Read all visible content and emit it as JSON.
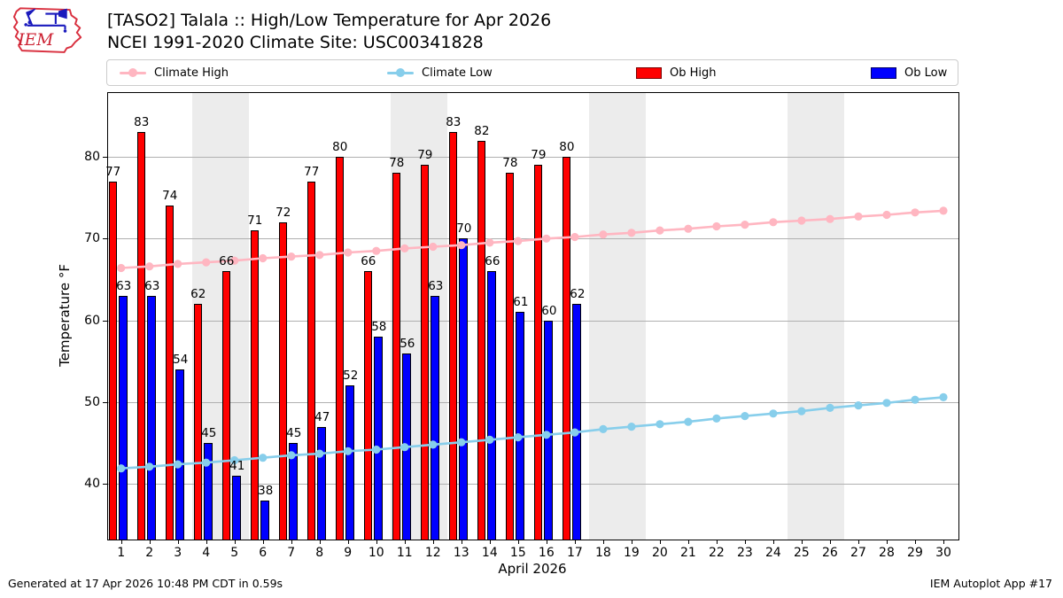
{
  "header": {
    "title_line1": "[TASO2] Talala :: High/Low Temperature for Apr 2026",
    "title_line2": "NCEI 1991-2020 Climate Site: USC00341828",
    "logo_text": "IEM"
  },
  "legend": [
    {
      "label": "Climate High",
      "type": "line",
      "color": "#ffb6c1"
    },
    {
      "label": "Climate Low",
      "type": "line",
      "color": "#87ceeb"
    },
    {
      "label": "Ob High",
      "type": "patch",
      "color": "#ff0000"
    },
    {
      "label": "Ob Low",
      "type": "patch",
      "color": "#0000ff"
    }
  ],
  "chart_data": {
    "type": "bar",
    "title": "[TASO2] Talala :: High/Low Temperature for Apr 2026",
    "subtitle": "NCEI 1991-2020 Climate Site: USC00341828",
    "x": [
      1,
      2,
      3,
      4,
      5,
      6,
      7,
      8,
      9,
      10,
      11,
      12,
      13,
      14,
      15,
      16,
      17,
      18,
      19,
      20,
      21,
      22,
      23,
      24,
      25,
      26,
      27,
      28,
      29,
      30
    ],
    "series": [
      {
        "name": "Ob High",
        "type": "bar",
        "color": "#ff0000",
        "values": [
          77,
          83,
          74,
          62,
          66,
          71,
          72,
          77,
          80,
          66,
          78,
          79,
          83,
          82,
          78,
          79,
          80,
          null,
          null,
          null,
          null,
          null,
          null,
          null,
          null,
          null,
          null,
          null,
          null,
          null
        ]
      },
      {
        "name": "Ob Low",
        "type": "bar",
        "color": "#0000ff",
        "values": [
          63,
          63,
          54,
          45,
          41,
          38,
          45,
          47,
          52,
          58,
          56,
          63,
          70,
          66,
          61,
          60,
          62,
          null,
          null,
          null,
          null,
          null,
          null,
          null,
          null,
          null,
          null,
          null,
          null,
          null
        ]
      },
      {
        "name": "Climate High",
        "type": "line",
        "color": "#ffb6c1",
        "values": [
          66.4,
          66.6,
          66.9,
          67.1,
          67.3,
          67.6,
          67.8,
          68.0,
          68.3,
          68.5,
          68.8,
          69.0,
          69.2,
          69.5,
          69.7,
          70.0,
          70.2,
          70.5,
          70.7,
          71.0,
          71.2,
          71.5,
          71.7,
          72.0,
          72.2,
          72.4,
          72.7,
          72.9,
          73.2,
          73.4
        ]
      },
      {
        "name": "Climate Low",
        "type": "line",
        "color": "#87ceeb",
        "values": [
          41.9,
          42.1,
          42.4,
          42.6,
          42.9,
          43.2,
          43.5,
          43.7,
          44.0,
          44.2,
          44.5,
          44.8,
          45.1,
          45.4,
          45.7,
          46.0,
          46.3,
          46.7,
          47.0,
          47.3,
          47.6,
          48.0,
          48.3,
          48.6,
          48.9,
          49.3,
          49.6,
          49.9,
          50.3,
          50.6
        ]
      }
    ],
    "weekend_bands": [
      [
        3.5,
        5.5
      ],
      [
        10.5,
        12.5
      ],
      [
        17.5,
        19.5
      ],
      [
        24.5,
        26.5
      ]
    ],
    "band_color": "#ececec",
    "grid_color": "#b0b0b0",
    "grid": "horizontal",
    "xlabel": "April 2026",
    "ylabel": "Temperature °F",
    "yticks": [
      40,
      50,
      60,
      70,
      80
    ],
    "ylim": [
      33.2,
      87.8
    ],
    "legend_position": "top"
  },
  "footer": {
    "left": "Generated at 17 Apr 2026 10:48 PM CDT in 0.59s",
    "right": "IEM Autoplot App #17"
  }
}
